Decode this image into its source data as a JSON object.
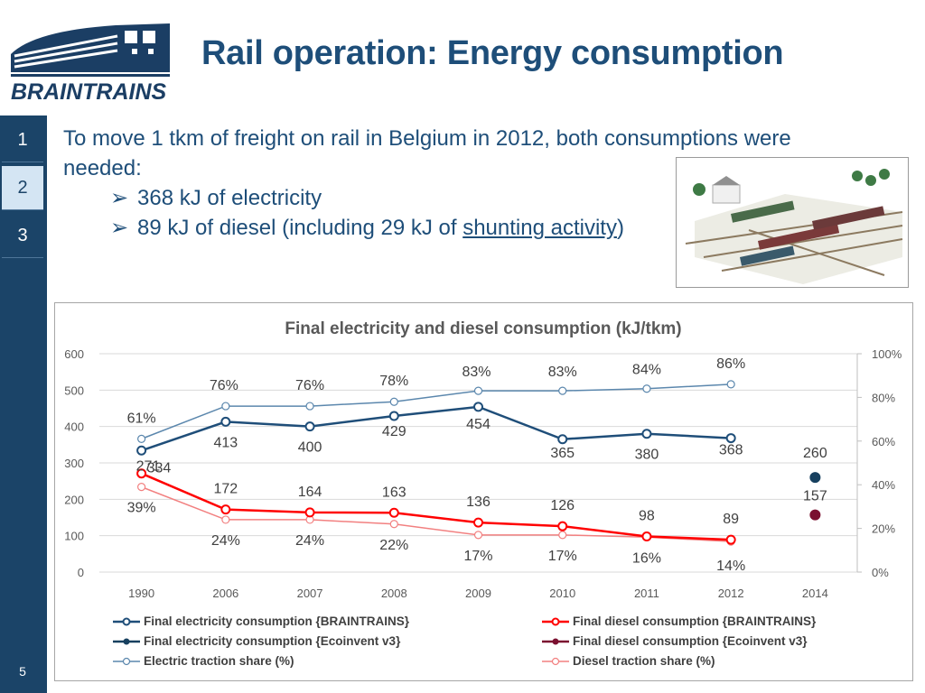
{
  "header": {
    "title": "Rail operation: Energy consumption",
    "logo_text": "BRAINTRAINS"
  },
  "sidebar": {
    "tabs": [
      "1",
      "2",
      "3"
    ],
    "active_index": 1,
    "page_number": "5"
  },
  "intro": {
    "line1": "To move 1 tkm of freight on rail in Belgium in 2012, both consumptions were",
    "line2": "needed:",
    "bullets": [
      {
        "text": "368 kJ of electricity"
      },
      {
        "text_before": "89 kJ of diesel  (including 29 kJ of ",
        "link": "shunting activity",
        "text_after": ")"
      }
    ]
  },
  "chart_data": {
    "type": "line",
    "title": "Final electricity and diesel consumption (kJ/tkm)",
    "categories": [
      "1990",
      "2006",
      "2007",
      "2008",
      "2009",
      "2010",
      "2011",
      "2012",
      "2014"
    ],
    "ylim": [
      0,
      600
    ],
    "y_ticks": [
      "0",
      "100",
      "200",
      "300",
      "400",
      "500",
      "600"
    ],
    "y2lim": [
      0,
      100
    ],
    "y2_ticks": [
      "0%",
      "20%",
      "40%",
      "60%",
      "80%",
      "100%"
    ],
    "grid": true,
    "legend_position": "bottom",
    "series": [
      {
        "name": "Final electricity consumption {BRAINTRAINS}",
        "axis": "left",
        "color": "#1f4e79",
        "width": 2.5,
        "values": [
          334,
          413,
          400,
          429,
          454,
          365,
          380,
          368,
          null
        ],
        "labels": [
          "334",
          "413",
          "400",
          "429",
          "454",
          "365",
          "380",
          "368",
          ""
        ]
      },
      {
        "name": "Final diesel consumption {BRAINTRAINS}",
        "axis": "left",
        "color": "#ff0000",
        "width": 2.5,
        "values": [
          271,
          172,
          164,
          163,
          136,
          126,
          98,
          89,
          null
        ],
        "labels": [
          "271",
          "172",
          "164",
          "163",
          "136",
          "126",
          "98",
          "89",
          ""
        ]
      },
      {
        "name": "Final electricity consumption {Ecoinvent v3}",
        "axis": "left",
        "color": "#17405f",
        "width": 2.5,
        "values": [
          null,
          null,
          null,
          null,
          null,
          null,
          null,
          null,
          260
        ],
        "labels": [
          "",
          "",
          "",
          "",
          "",
          "",
          "",
          "",
          "260"
        ]
      },
      {
        "name": "Final diesel consumption {Ecoinvent v3}",
        "axis": "left",
        "color": "#7b1030",
        "width": 2.5,
        "values": [
          null,
          null,
          null,
          null,
          null,
          null,
          null,
          null,
          157
        ],
        "labels": [
          "",
          "",
          "",
          "",
          "",
          "",
          "",
          "",
          "157"
        ]
      },
      {
        "name": "Electric traction share (%)",
        "axis": "right",
        "color": "#5b87ad",
        "width": 1.5,
        "values": [
          61,
          76,
          76,
          78,
          83,
          83,
          84,
          86,
          null
        ],
        "labels": [
          "61%",
          "76%",
          "76%",
          "78%",
          "83%",
          "83%",
          "84%",
          "86%",
          ""
        ]
      },
      {
        "name": "Diesel traction share (%)",
        "axis": "right",
        "color": "#f28080",
        "width": 1.5,
        "values": [
          39,
          24,
          24,
          22,
          17,
          17,
          16,
          14,
          null
        ],
        "labels": [
          "39%",
          "24%",
          "24%",
          "22%",
          "17%",
          "17%",
          "16%",
          "14%",
          ""
        ]
      }
    ]
  }
}
